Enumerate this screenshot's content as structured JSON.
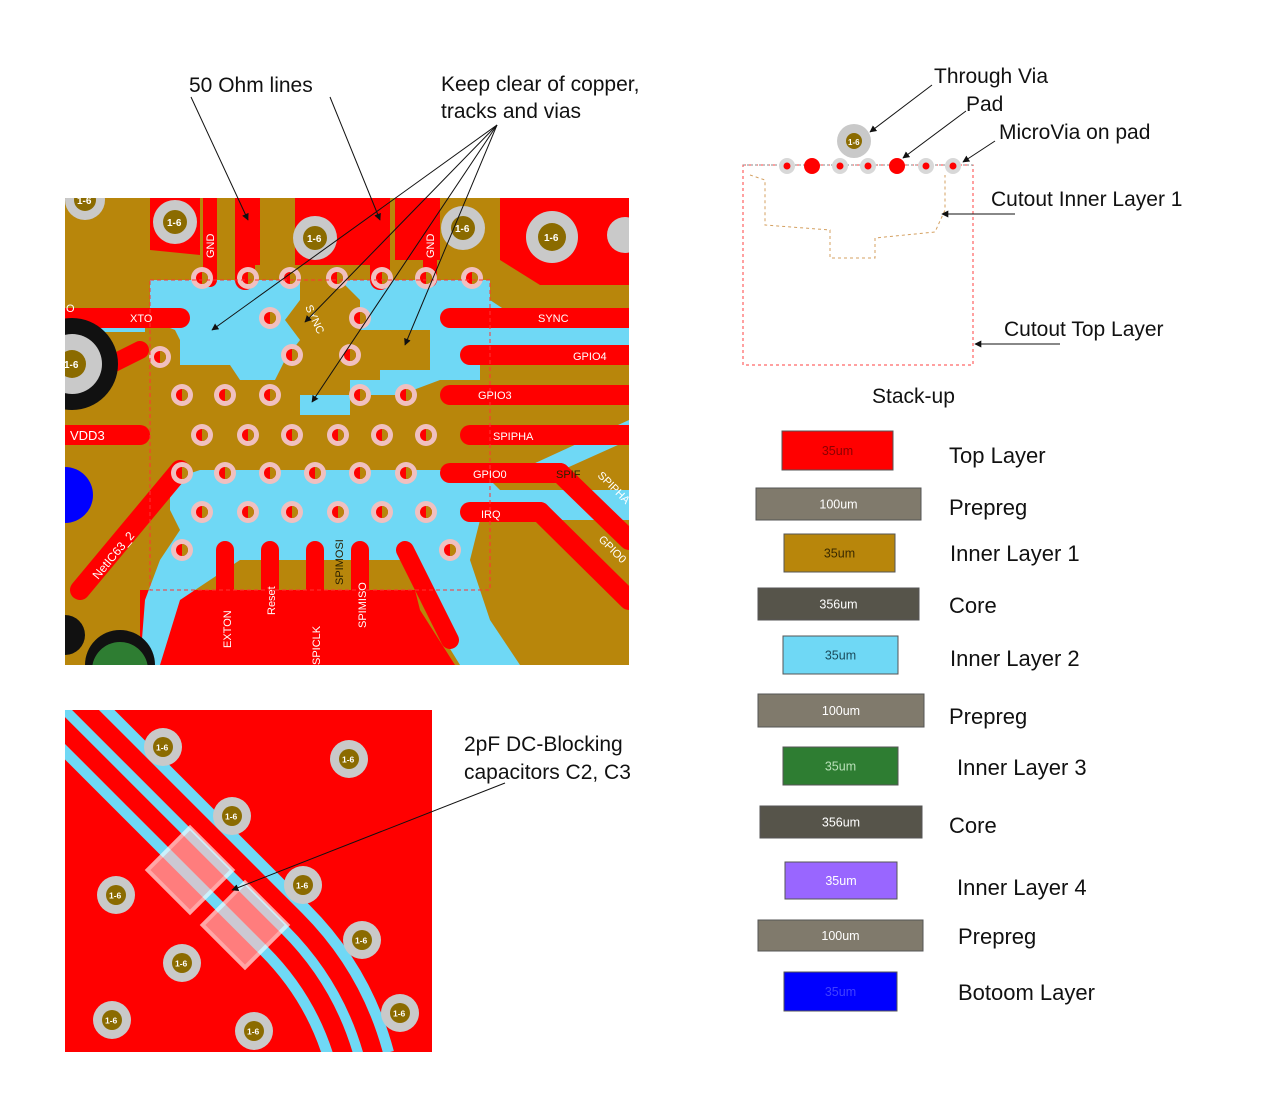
{
  "annotations": {
    "fifty_ohm": "50 Ohm lines",
    "keep_clear_1": "Keep clear of copper,",
    "keep_clear_2": "tracks and vias",
    "through_via": "Through Via",
    "pad": "Pad",
    "microvia": "MicroVia on pad",
    "cutout_inner": "Cutout Inner Layer 1",
    "cutout_top": "Cutout Top Layer",
    "stackup_title": "Stack-up",
    "caps_1": "2pF DC-Blocking",
    "caps_2": "capacitors C2, C3"
  },
  "via_label": "1-6",
  "pcb_labels": {
    "gnd": "GND",
    "sync_small": "SYNC",
    "xto": "XTO",
    "xto_edge": "O",
    "sync": "SYNC",
    "gpio4": "GPIO4",
    "gpio3": "GPIO3",
    "vdd3": "VDD3",
    "spipha": "SPIPHA",
    "gpio0": "GPIO0",
    "spif": "SPIF",
    "spipha_diag": "SPIPHA",
    "irq": "IRQ",
    "gpio0_diag": "GPIO0",
    "netic": "NetIC63_2",
    "exton": "EXTON",
    "reset": "Reset",
    "spiclk": "SPICLK",
    "spimosi": "SPIMOSI",
    "spimiso": "SPIMISO"
  },
  "colors": {
    "top": "#ff0000",
    "inner1": "#b8860b",
    "inner2": "#6fd8f5",
    "inner3": "#2e7d32",
    "inner4": "#9966ff",
    "bottom": "#0000ff",
    "prepreg": "#7f7a6c",
    "core": "#56544a"
  },
  "stackup": [
    {
      "thickness": "35um",
      "name": "Top Layer",
      "color": "#ff0000",
      "text_color": "#8b0000"
    },
    {
      "thickness": "100um",
      "name": "Prepreg",
      "color": "#807a6c",
      "text_color": "#ffffff"
    },
    {
      "thickness": "35um",
      "name": "Inner Layer 1",
      "color": "#b8860b",
      "text_color": "#3a2a00"
    },
    {
      "thickness": "356um",
      "name": "Core",
      "color": "#56544a",
      "text_color": "#ffffff"
    },
    {
      "thickness": "35um",
      "name": "Inner Layer 2",
      "color": "#6fd8f5",
      "text_color": "#1a4a5a"
    },
    {
      "thickness": "100um",
      "name": "Prepreg",
      "color": "#807a6c",
      "text_color": "#ffffff"
    },
    {
      "thickness": "35um",
      "name": "Inner Layer 3",
      "color": "#2e7d32",
      "text_color": "#b8e0b8"
    },
    {
      "thickness": "356um",
      "name": "Core",
      "color": "#56544a",
      "text_color": "#ffffff"
    },
    {
      "thickness": "35um",
      "name": "Inner Layer 4",
      "color": "#9966ff",
      "text_color": "#ffffff"
    },
    {
      "thickness": "100um",
      "name": "Prepreg",
      "color": "#807a6c",
      "text_color": "#ffffff"
    },
    {
      "thickness": "35um",
      "name": "Botoom Layer",
      "color": "#0000ff",
      "text_color": "#4040ff"
    }
  ]
}
